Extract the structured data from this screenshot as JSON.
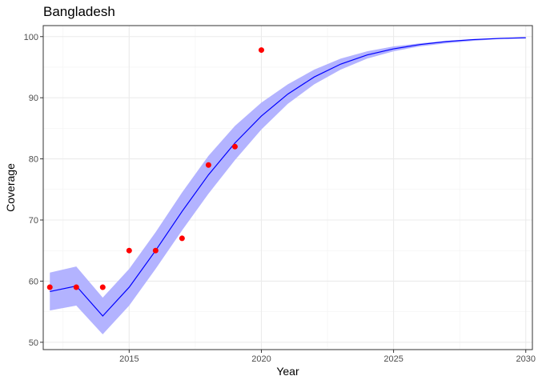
{
  "chart_data": {
    "type": "line",
    "title": "Bangladesh",
    "xlabel": "Year",
    "ylabel": "Coverage",
    "xlim": [
      2011.75,
      2030.25
    ],
    "ylim": [
      48.8,
      101.8
    ],
    "x_ticks": [
      2015,
      2020,
      2025,
      2030
    ],
    "y_ticks": [
      50,
      60,
      70,
      80,
      90,
      100
    ],
    "grid": true,
    "series": [
      {
        "kind": "line",
        "color": "#0000ff",
        "x": [
          2012,
          2013,
          2014,
          2015,
          2016,
          2017,
          2018,
          2019,
          2020,
          2021,
          2022,
          2023,
          2024,
          2025,
          2026,
          2027,
          2028,
          2029,
          2030
        ],
        "y": [
          58.3,
          59.2,
          54.3,
          59.0,
          65.0,
          71.4,
          77.4,
          82.6,
          87.0,
          90.6,
          93.4,
          95.5,
          97.0,
          98.0,
          98.7,
          99.2,
          99.5,
          99.7,
          99.8
        ]
      },
      {
        "kind": "band",
        "color": "#b3b3ff",
        "x": [
          2012,
          2013,
          2014,
          2015,
          2016,
          2017,
          2018,
          2019,
          2020,
          2021,
          2022,
          2023,
          2024,
          2025,
          2026,
          2027,
          2028,
          2029,
          2030
        ],
        "lower": [
          55.2,
          56.0,
          51.3,
          56.0,
          62.0,
          68.3,
          74.3,
          79.8,
          84.8,
          89.0,
          92.2,
          94.6,
          96.4,
          97.6,
          98.4,
          98.9,
          99.3,
          99.6,
          99.8
        ],
        "upper": [
          61.4,
          62.4,
          57.3,
          62.0,
          68.0,
          74.5,
          80.5,
          85.4,
          89.2,
          92.2,
          94.6,
          96.4,
          97.6,
          98.4,
          98.9,
          99.3,
          99.6,
          99.8,
          99.9
        ]
      },
      {
        "kind": "points",
        "color": "#ff0000",
        "x": [
          2012,
          2013,
          2014,
          2015,
          2016,
          2017,
          2018,
          2019,
          2020
        ],
        "y": [
          59,
          59,
          59,
          65,
          65,
          67,
          79,
          82,
          97.8
        ]
      }
    ]
  }
}
